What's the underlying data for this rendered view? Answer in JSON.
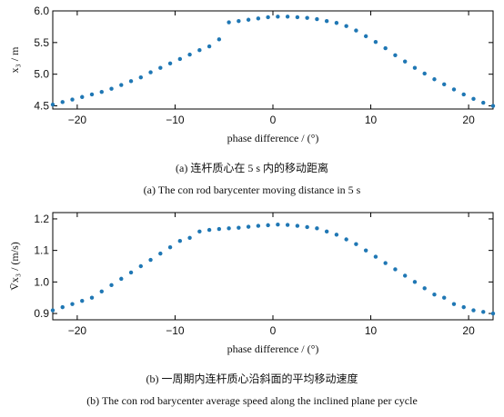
{
  "figure": {
    "panel_a": {
      "caption_cn": "(a) 连杆质心在 5 s 内的移动距离",
      "caption_en": "(a) The con rod barycenter moving distance in 5 s"
    },
    "panel_b": {
      "caption_cn": "(b) 一周期内连杆质心沿斜面的平均移动速度",
      "caption_en": "(b) The con rod barycenter average speed along the inclined plane per cycle"
    }
  },
  "chart_data": [
    {
      "type": "scatter",
      "xlabel": "phase difference / (°)",
      "ylabel": "x₃ / m",
      "xlim": [
        -22.5,
        22.5
      ],
      "ylim": [
        4.45,
        6.0
      ],
      "xticks": [
        -20,
        -10,
        0,
        10,
        20
      ],
      "yticks": [
        4.5,
        5.0,
        5.5,
        6.0
      ],
      "xtick_labels": [
        "−20",
        "−10",
        "0",
        "10",
        "20"
      ],
      "ytick_labels": [
        "4.5",
        "5.0",
        "5.5",
        "6.0"
      ],
      "color": "#1f77b4",
      "series": [
        {
          "x": [
            -22.5,
            -21.5,
            -20.5,
            -19.5,
            -18.5,
            -17.5,
            -16.5,
            -15.5,
            -14.5,
            -13.5,
            -12.5,
            -11.5,
            -10.5,
            -9.5,
            -8.5,
            -7.5,
            -6.5,
            -5.5,
            -4.5,
            -3.5,
            -2.5,
            -1.5,
            -0.5,
            0.5,
            1.5,
            2.5,
            3.5,
            4.5,
            5.5,
            6.5,
            7.5,
            8.5,
            9.5,
            10.5,
            11.5,
            12.5,
            13.5,
            14.5,
            15.5,
            16.5,
            17.5,
            18.5,
            19.5,
            20.5,
            21.5,
            22.5
          ],
          "y": [
            4.52,
            4.56,
            4.6,
            4.64,
            4.68,
            4.72,
            4.77,
            4.83,
            4.89,
            4.95,
            5.03,
            5.1,
            5.17,
            5.24,
            5.31,
            5.38,
            5.44,
            5.55,
            5.82,
            5.84,
            5.86,
            5.88,
            5.9,
            5.91,
            5.91,
            5.9,
            5.89,
            5.87,
            5.84,
            5.81,
            5.76,
            5.69,
            5.6,
            5.51,
            5.41,
            5.3,
            5.2,
            5.1,
            5.01,
            4.92,
            4.84,
            4.76,
            4.68,
            4.61,
            4.55,
            4.5
          ]
        }
      ]
    },
    {
      "type": "scatter",
      "xlabel": "phase difference / (°)",
      "ylabel": "V̄x₃ / (m/s)",
      "xlim": [
        -22.5,
        22.5
      ],
      "ylim": [
        0.88,
        1.22
      ],
      "xticks": [
        -20,
        -10,
        0,
        10,
        20
      ],
      "yticks": [
        0.9,
        1.0,
        1.1,
        1.2
      ],
      "xtick_labels": [
        "−20",
        "−10",
        "0",
        "10",
        "20"
      ],
      "ytick_labels": [
        "0.9",
        "1.0",
        "1.1",
        "1.2"
      ],
      "color": "#1f77b4",
      "series": [
        {
          "x": [
            -22.5,
            -21.5,
            -20.5,
            -19.5,
            -18.5,
            -17.5,
            -16.5,
            -15.5,
            -14.5,
            -13.5,
            -12.5,
            -11.5,
            -10.5,
            -9.5,
            -8.5,
            -7.5,
            -6.5,
            -5.5,
            -4.5,
            -3.5,
            -2.5,
            -1.5,
            -0.5,
            0.5,
            1.5,
            2.5,
            3.5,
            4.5,
            5.5,
            6.5,
            7.5,
            8.5,
            9.5,
            10.5,
            11.5,
            12.5,
            13.5,
            14.5,
            15.5,
            16.5,
            17.5,
            18.5,
            19.5,
            20.5,
            21.5,
            22.5
          ],
          "y": [
            0.91,
            0.92,
            0.93,
            0.94,
            0.95,
            0.97,
            0.99,
            1.01,
            1.03,
            1.05,
            1.07,
            1.09,
            1.11,
            1.13,
            1.14,
            1.16,
            1.165,
            1.168,
            1.17,
            1.172,
            1.175,
            1.178,
            1.18,
            1.182,
            1.181,
            1.178,
            1.174,
            1.17,
            1.16,
            1.15,
            1.135,
            1.12,
            1.1,
            1.08,
            1.06,
            1.04,
            1.02,
            1.0,
            0.98,
            0.96,
            0.95,
            0.93,
            0.92,
            0.91,
            0.905,
            0.9
          ]
        }
      ]
    }
  ]
}
